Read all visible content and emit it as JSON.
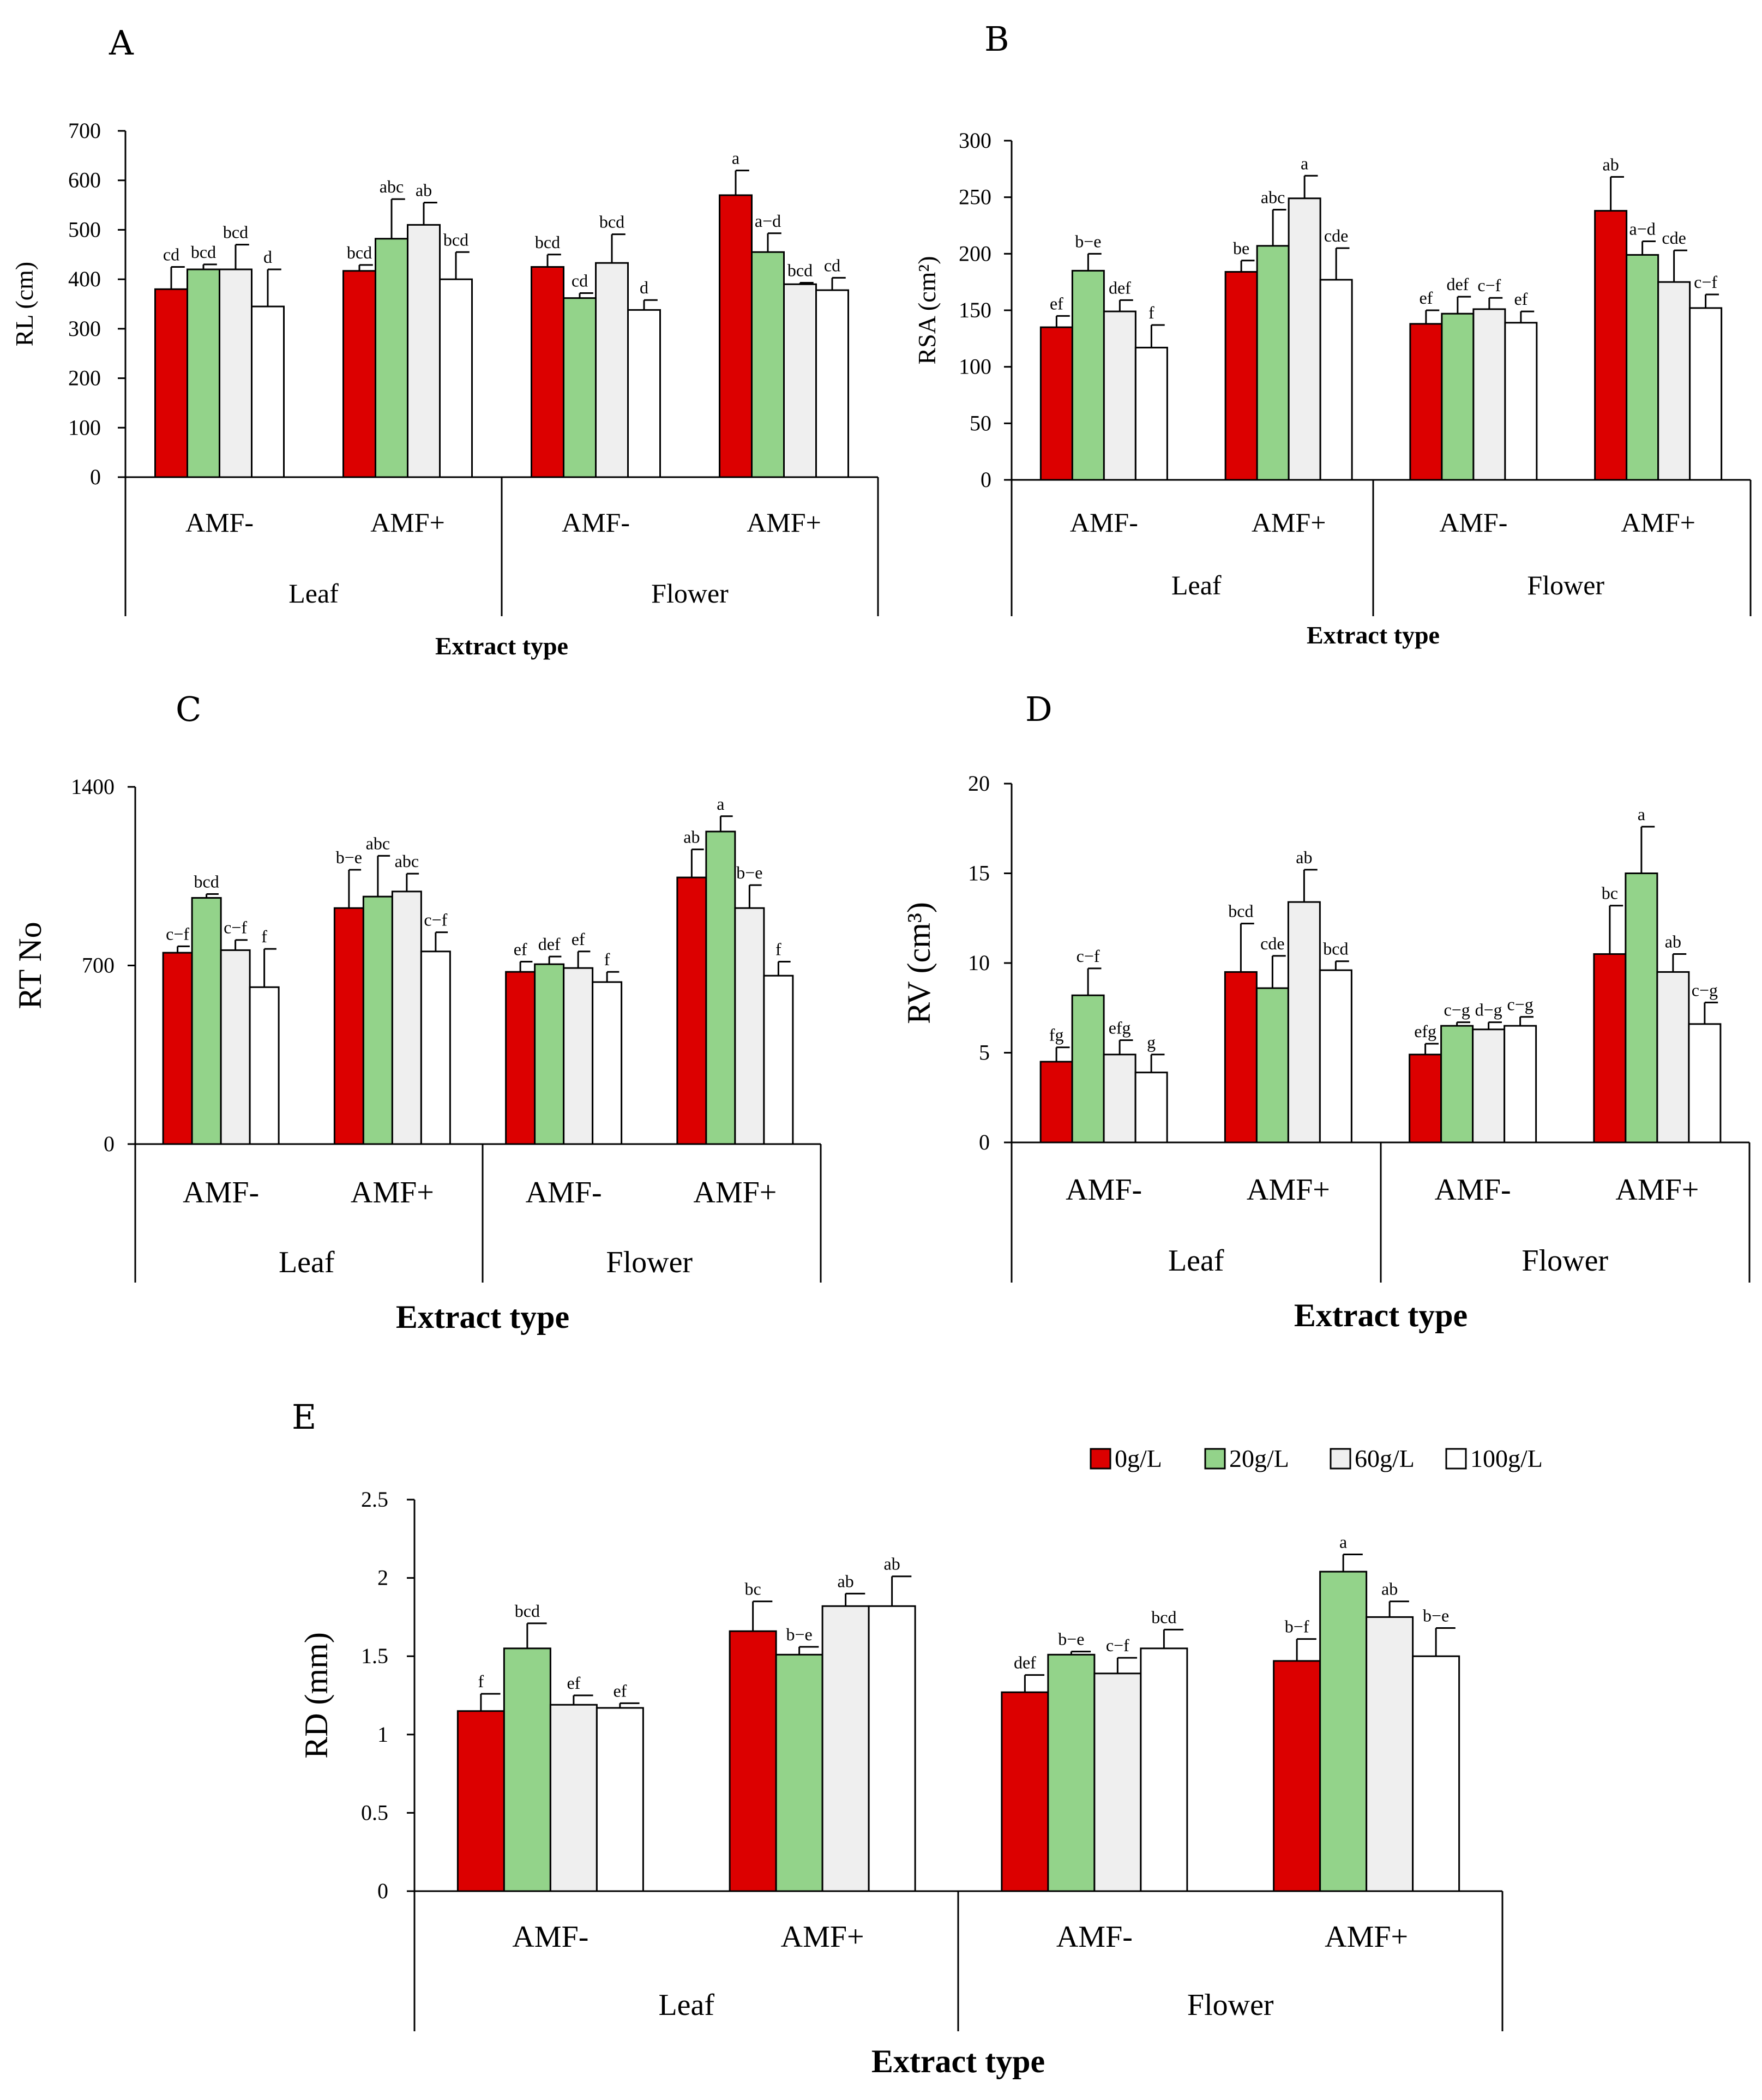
{
  "colors": [
    "#dc0000",
    "#93d38a",
    "#efefef",
    "#ffffff"
  ],
  "legend": [
    "0g/L",
    "20g/L",
    "60g/L",
    "100g/L"
  ],
  "chart_data": [
    {
      "type": "bar",
      "id": "A",
      "panel_label": "A",
      "ylabel": "RL (cm)",
      "xlabel": "Extract type",
      "ylim": [
        0,
        700
      ],
      "yticks": [
        0,
        100,
        200,
        300,
        400,
        500,
        600,
        700
      ],
      "subgroups": [
        "AMF-",
        "AMF+",
        "AMF-",
        "AMF+"
      ],
      "groups": [
        "Leaf",
        "Flower"
      ],
      "series": [
        {
          "name": "0g/L",
          "values": [
            380,
            417,
            425,
            570
          ],
          "errors": [
            45,
            12,
            25,
            50
          ],
          "letters": [
            "cd",
            "bcd",
            "bcd",
            "a"
          ]
        },
        {
          "name": "20g/L",
          "values": [
            420,
            482,
            362,
            455
          ],
          "errors": [
            10,
            80,
            10,
            38
          ],
          "letters": [
            "bcd",
            "abc",
            "cd",
            "a−d"
          ]
        },
        {
          "name": "60g/L",
          "values": [
            420,
            510,
            433,
            390
          ],
          "errors": [
            50,
            45,
            58,
            3
          ],
          "letters": [
            "bcd",
            "ab",
            "bcd",
            "bcd"
          ]
        },
        {
          "name": "100g/L",
          "values": [
            345,
            400,
            338,
            378
          ],
          "errors": [
            75,
            55,
            20,
            25
          ],
          "letters": [
            "d",
            "bcd",
            "d",
            "cd"
          ]
        }
      ]
    },
    {
      "type": "bar",
      "id": "B",
      "panel_label": "B",
      "ylabel": "RSA (cm²)",
      "xlabel": "Extract type",
      "ylim": [
        0,
        300
      ],
      "yticks": [
        0,
        50,
        100,
        150,
        200,
        250,
        300
      ],
      "subgroups": [
        "AMF-",
        "AMF+",
        "AMF-",
        "AMF+"
      ],
      "groups": [
        "Leaf",
        "Flower"
      ],
      "series": [
        {
          "name": "0g/L",
          "values": [
            135,
            184,
            138,
            238
          ],
          "errors": [
            10,
            10,
            12,
            30
          ],
          "letters": [
            "ef",
            "be",
            "ef",
            "ab"
          ]
        },
        {
          "name": "20g/L",
          "values": [
            185,
            207,
            147,
            199
          ],
          "errors": [
            15,
            32,
            15,
            12
          ],
          "letters": [
            "b−e",
            "abc",
            "def",
            "a−d"
          ]
        },
        {
          "name": "60g/L",
          "values": [
            149,
            249,
            151,
            175
          ],
          "errors": [
            10,
            20,
            10,
            28
          ],
          "letters": [
            "def",
            "a",
            "c−f",
            "cde"
          ]
        },
        {
          "name": "100g/L",
          "values": [
            117,
            177,
            139,
            152
          ],
          "errors": [
            20,
            28,
            10,
            12
          ],
          "letters": [
            "f",
            "cde",
            "ef",
            "c−f"
          ]
        }
      ]
    },
    {
      "type": "bar",
      "id": "C",
      "panel_label": "C",
      "ylabel": "RT No",
      "xlabel": "Extract type",
      "ylim": [
        0,
        1400
      ],
      "yticks": [
        0,
        700,
        1400
      ],
      "subgroups": [
        "AMF-",
        "AMF+",
        "AMF-",
        "AMF+"
      ],
      "groups": [
        "Leaf",
        "Flower"
      ],
      "series": [
        {
          "name": "0g/L",
          "values": [
            750,
            925,
            675,
            1045
          ],
          "errors": [
            25,
            150,
            40,
            110
          ],
          "letters": [
            "c−f",
            "b−e",
            "ef",
            "ab"
          ]
        },
        {
          "name": "20g/L",
          "values": [
            965,
            970,
            705,
            1225
          ],
          "errors": [
            15,
            160,
            30,
            60
          ],
          "letters": [
            "bcd",
            "abc",
            "def",
            "a"
          ]
        },
        {
          "name": "60g/L",
          "values": [
            760,
            990,
            690,
            925
          ],
          "errors": [
            40,
            70,
            65,
            90
          ],
          "letters": [
            "c−f",
            "abc",
            "ef",
            "b−e"
          ]
        },
        {
          "name": "100g/L",
          "values": [
            615,
            755,
            635,
            660
          ],
          "errors": [
            150,
            75,
            40,
            55
          ],
          "letters": [
            "f",
            "c−f",
            "f",
            "f"
          ]
        }
      ]
    },
    {
      "type": "bar",
      "id": "D",
      "panel_label": "D",
      "ylabel": "RV (cm³)",
      "xlabel": "Extract type",
      "ylim": [
        0,
        20
      ],
      "yticks": [
        0,
        5,
        10,
        15,
        20
      ],
      "subgroups": [
        "AMF-",
        "AMF+",
        "AMF-",
        "AMF+"
      ],
      "groups": [
        "Leaf",
        "Flower"
      ],
      "series": [
        {
          "name": "0g/L",
          "values": [
            4.5,
            9.5,
            4.9,
            10.5
          ],
          "errors": [
            0.8,
            2.7,
            0.6,
            2.7
          ],
          "letters": [
            "fg",
            "bcd",
            "efg",
            "bc"
          ]
        },
        {
          "name": "20g/L",
          "values": [
            8.2,
            8.6,
            6.5,
            15.0
          ],
          "errors": [
            1.5,
            1.8,
            0.2,
            2.6
          ],
          "letters": [
            "c−f",
            "cde",
            "c−g",
            "a"
          ]
        },
        {
          "name": "60g/L",
          "values": [
            4.9,
            13.4,
            6.3,
            9.5
          ],
          "errors": [
            0.8,
            1.8,
            0.4,
            1.0
          ],
          "letters": [
            "efg",
            "ab",
            "d−g",
            "ab"
          ]
        },
        {
          "name": "100g/L",
          "values": [
            3.9,
            9.6,
            6.5,
            6.6
          ],
          "errors": [
            1.0,
            0.5,
            0.5,
            1.2
          ],
          "letters": [
            "g",
            "bcd",
            "c−g",
            "c−g"
          ]
        }
      ]
    },
    {
      "type": "bar",
      "id": "E",
      "panel_label": "E",
      "ylabel": "RD (mm)",
      "xlabel": "Extract type",
      "ylim": [
        0,
        2.5
      ],
      "yticks": [
        0,
        0.5,
        1,
        1.5,
        2,
        2.5
      ],
      "subgroups": [
        "AMF-",
        "AMF+",
        "AMF-",
        "AMF+"
      ],
      "groups": [
        "Leaf",
        "Flower"
      ],
      "series": [
        {
          "name": "0g/L",
          "values": [
            1.15,
            1.66,
            1.27,
            1.47
          ],
          "errors": [
            0.11,
            0.19,
            0.11,
            0.14
          ],
          "letters": [
            "f",
            "bc",
            "def",
            "b−f"
          ]
        },
        {
          "name": "20g/L",
          "values": [
            1.55,
            1.51,
            1.51,
            2.04
          ],
          "errors": [
            0.16,
            0.05,
            0.02,
            0.11
          ],
          "letters": [
            "bcd",
            "b−e",
            "b−e",
            "a"
          ]
        },
        {
          "name": "60g/L",
          "values": [
            1.19,
            1.82,
            1.39,
            1.75
          ],
          "errors": [
            0.06,
            0.08,
            0.1,
            0.1
          ],
          "letters": [
            "ef",
            "ab",
            "c−f",
            "ab"
          ]
        },
        {
          "name": "100g/L",
          "values": [
            1.17,
            1.82,
            1.55,
            1.5
          ],
          "errors": [
            0.03,
            0.19,
            0.12,
            0.18
          ],
          "letters": [
            "ef",
            "ab",
            "bcd",
            "b−e"
          ]
        }
      ]
    }
  ]
}
